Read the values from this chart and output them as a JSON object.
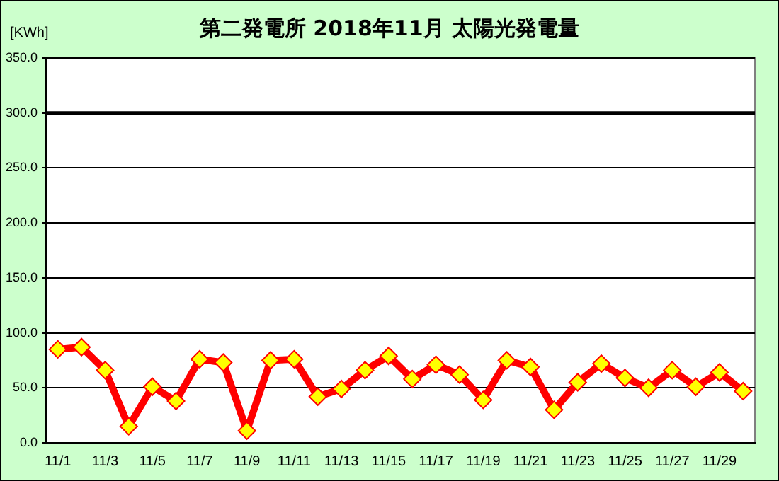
{
  "chart_data": {
    "type": "line",
    "title": "第二発電所  2018年11月 太陽光発電量",
    "ylabel": "[KWh]",
    "categories": [
      "11/1",
      null,
      "11/3",
      null,
      "11/5",
      null,
      "11/7",
      null,
      "11/9",
      null,
      "11/11",
      null,
      "11/13",
      null,
      "11/15",
      null,
      "11/17",
      null,
      "11/19",
      null,
      "11/21",
      null,
      "11/23",
      null,
      "11/25",
      null,
      "11/27",
      null,
      "11/29",
      null
    ],
    "series": [
      {
        "color": "#ff0000",
        "values": [
          85,
          87,
          66,
          15,
          51,
          38,
          76,
          73,
          11,
          75,
          76,
          42,
          49,
          66,
          79,
          58,
          71,
          62,
          39,
          75,
          69,
          30,
          55,
          72,
          59,
          50,
          66,
          51,
          64,
          47
        ]
      }
    ],
    "ylim": [
      0,
      350
    ],
    "yticks": [
      {
        "value": 0,
        "label": "0.0"
      },
      {
        "value": 50,
        "label": "50.0"
      },
      {
        "value": 100,
        "label": "100.0"
      },
      {
        "value": 150,
        "label": "150.0"
      },
      {
        "value": 200,
        "label": "200.0"
      },
      {
        "value": 250,
        "label": "250.0"
      },
      {
        "value": 300,
        "label": "300.0"
      },
      {
        "value": 350,
        "label": "350.0"
      }
    ],
    "ref_lines": [
      {
        "axis": "y",
        "value": 300,
        "color": "#000000"
      }
    ],
    "grid": "y",
    "legend": false,
    "marker": "diamond",
    "line_style": "solid"
  }
}
